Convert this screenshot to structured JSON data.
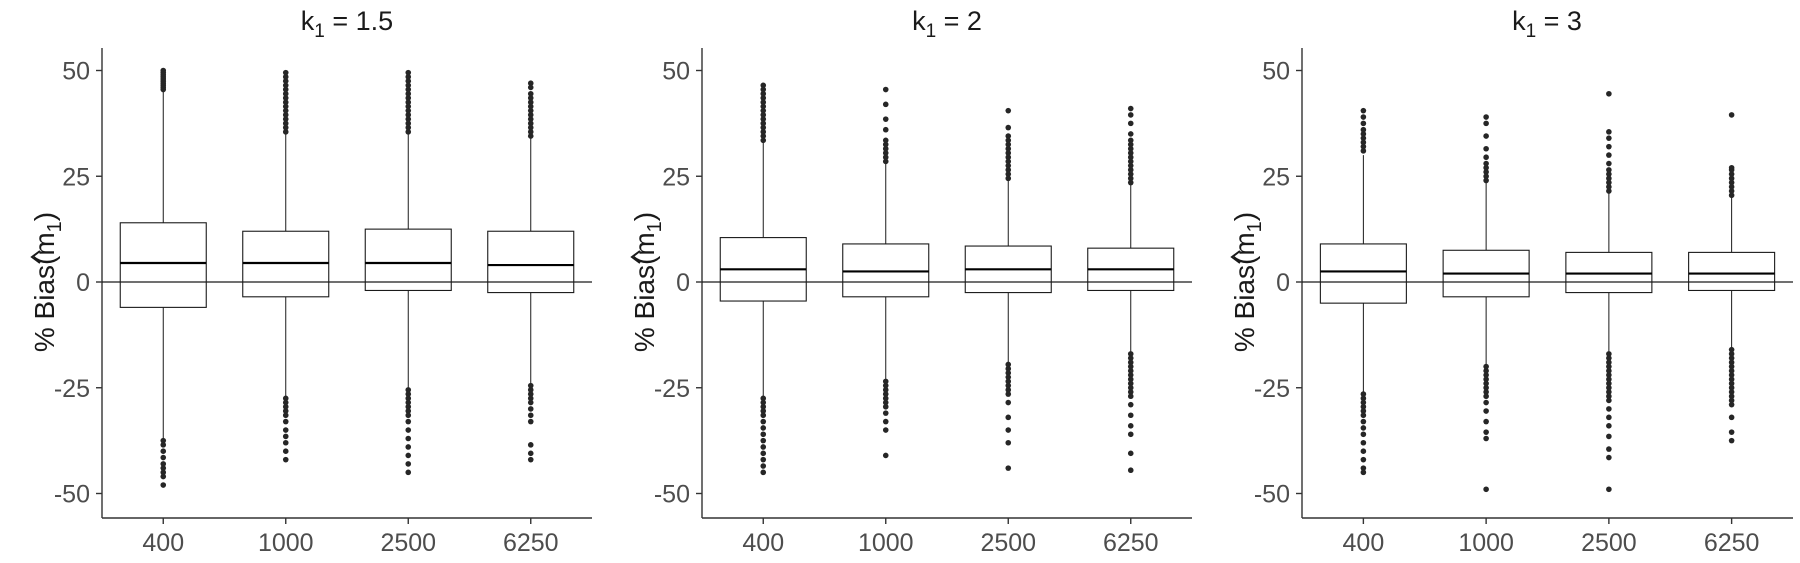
{
  "chart_data": [
    {
      "type": "boxplot",
      "title": {
        "base": "k",
        "sub": "1",
        "rest": " = 1.5"
      },
      "ylabel": {
        "pre": "% Bias(",
        "hat_char": "m",
        "sub": "1",
        "post": ")"
      },
      "ylim": [
        -55,
        55
      ],
      "yticks": [
        -50,
        -25,
        0,
        25,
        50
      ],
      "ytick_labels": [
        "-50",
        "-25",
        "0",
        "25",
        "50"
      ],
      "reference_line": 0,
      "grid": false,
      "categories": [
        "400",
        "1000",
        "2500",
        "6250"
      ],
      "boxes": [
        {
          "q1": -6,
          "median": 4.5,
          "q3": 14,
          "whisker_low": -37,
          "whisker_high": 45,
          "outliers_high": [
            45.5,
            46,
            46.5,
            47,
            47.5,
            48,
            48.5,
            49,
            49.5,
            50
          ],
          "outliers_low": [
            -37.5,
            -38.5,
            -40,
            -41.5,
            -43,
            -44,
            -45,
            -46,
            -48
          ]
        },
        {
          "q1": -3.5,
          "median": 4.5,
          "q3": 12,
          "whisker_low": -27,
          "whisker_high": 35,
          "outliers_high": [
            35.5,
            36.5,
            37.5,
            38.5,
            39.5,
            40.5,
            41.5,
            42.5,
            43.5,
            44.5,
            45.5,
            46.5,
            47.5,
            48.5,
            49.5
          ],
          "outliers_low": [
            -27.5,
            -28.5,
            -29.5,
            -30.5,
            -31.5,
            -33,
            -35,
            -36.5,
            -38,
            -40,
            -42
          ]
        },
        {
          "q1": -2,
          "median": 4.5,
          "q3": 12.5,
          "whisker_low": -25,
          "whisker_high": 35,
          "outliers_high": [
            35.5,
            36.5,
            37.5,
            38.5,
            39.5,
            40.5,
            41.5,
            42.5,
            43.5,
            44.5,
            45.5,
            46.5,
            47.5,
            48.5,
            49.5
          ],
          "outliers_low": [
            -25.5,
            -26.5,
            -27.5,
            -28.5,
            -29.5,
            -30.5,
            -31.5,
            -33,
            -35,
            -37,
            -39,
            -41,
            -43,
            -45
          ]
        },
        {
          "q1": -2.5,
          "median": 4,
          "q3": 12,
          "whisker_low": -24,
          "whisker_high": 34,
          "outliers_high": [
            34.5,
            35.5,
            36.5,
            37.5,
            38.5,
            39.5,
            40.5,
            41.5,
            42.5,
            43.5,
            44.5,
            46,
            47
          ],
          "outliers_low": [
            -24.5,
            -25.5,
            -26.5,
            -27.5,
            -28.5,
            -30,
            -31.5,
            -33,
            -38.5,
            -40.5,
            -42
          ]
        }
      ]
    },
    {
      "type": "boxplot",
      "title": {
        "base": "k",
        "sub": "1",
        "rest": " = 2"
      },
      "ylabel": {
        "pre": "% Bias(",
        "hat_char": "m",
        "sub": "1",
        "post": ")"
      },
      "ylim": [
        -55,
        55
      ],
      "yticks": [
        -50,
        -25,
        0,
        25,
        50
      ],
      "ytick_labels": [
        "-50",
        "-25",
        "0",
        "25",
        "50"
      ],
      "reference_line": 0,
      "grid": false,
      "categories": [
        "400",
        "1000",
        "2500",
        "6250"
      ],
      "boxes": [
        {
          "q1": -4.5,
          "median": 3,
          "q3": 10.5,
          "whisker_low": -27,
          "whisker_high": 33,
          "outliers_high": [
            33.5,
            34.5,
            35.5,
            36.5,
            37.5,
            38.5,
            39.5,
            40.5,
            41.5,
            42.5,
            43.5,
            44.5,
            45.5,
            46.5
          ],
          "outliers_low": [
            -27.5,
            -28.5,
            -29.5,
            -30.5,
            -31.5,
            -33,
            -34.5,
            -36,
            -37.5,
            -39,
            -40.5,
            -42,
            -43.5,
            -45
          ]
        },
        {
          "q1": -3.5,
          "median": 2.5,
          "q3": 9,
          "whisker_low": -23,
          "whisker_high": 28,
          "outliers_high": [
            28.5,
            29.5,
            30.5,
            31.5,
            32.5,
            33.5,
            36,
            38.5,
            42,
            45.5
          ],
          "outliers_low": [
            -23.5,
            -24.5,
            -25.5,
            -26.5,
            -27.5,
            -28.5,
            -29.5,
            -31,
            -33,
            -35,
            -41
          ]
        },
        {
          "q1": -2.5,
          "median": 3,
          "q3": 8.5,
          "whisker_low": -19,
          "whisker_high": 24,
          "outliers_high": [
            24.5,
            25.5,
            26.5,
            27.5,
            28.5,
            29.5,
            30.5,
            31.5,
            32.5,
            33.5,
            34.5,
            36.5,
            40.5
          ],
          "outliers_low": [
            -19.5,
            -20.5,
            -21.5,
            -22.5,
            -23.5,
            -24.5,
            -25.5,
            -26.5,
            -28.5,
            -32,
            -35,
            -38,
            -44
          ]
        },
        {
          "q1": -2,
          "median": 3,
          "q3": 8,
          "whisker_low": -16.5,
          "whisker_high": 23,
          "outliers_high": [
            23.5,
            24.5,
            25.5,
            26.5,
            27.5,
            28.5,
            29.5,
            30.5,
            31.5,
            32.5,
            33.5,
            35,
            37.5,
            39.5,
            41
          ],
          "outliers_low": [
            -17,
            -18,
            -19,
            -20,
            -21,
            -22,
            -23,
            -24,
            -25,
            -26,
            -27,
            -29,
            -31.5,
            -34,
            -36,
            -40.5,
            -44.5
          ]
        }
      ]
    },
    {
      "type": "boxplot",
      "title": {
        "base": "k",
        "sub": "1",
        "rest": " = 3"
      },
      "ylabel": {
        "pre": "% Bias(",
        "hat_char": "m",
        "sub": "1",
        "post": ")"
      },
      "ylim": [
        -55,
        55
      ],
      "yticks": [
        -50,
        -25,
        0,
        25,
        50
      ],
      "ytick_labels": [
        "-50",
        "-25",
        "0",
        "25",
        "50"
      ],
      "reference_line": 0,
      "grid": false,
      "categories": [
        "400",
        "1000",
        "2500",
        "6250"
      ],
      "boxes": [
        {
          "q1": -5,
          "median": 2.5,
          "q3": 9,
          "whisker_low": -26,
          "whisker_high": 30,
          "outliers_high": [
            31,
            32,
            33,
            34,
            35,
            36,
            37.5,
            39,
            40.5
          ],
          "outliers_low": [
            -26.5,
            -27.5,
            -28.5,
            -29.5,
            -30.5,
            -31.5,
            -33,
            -34.5,
            -36,
            -38,
            -40,
            -42,
            -44,
            -45
          ]
        },
        {
          "q1": -3.5,
          "median": 2,
          "q3": 7.5,
          "whisker_low": -19.5,
          "whisker_high": 23.5,
          "outliers_high": [
            24,
            25,
            26,
            27,
            28,
            29.5,
            31.5,
            34.5,
            37.5,
            39
          ],
          "outliers_low": [
            -20,
            -21,
            -22,
            -23,
            -24,
            -25,
            -26,
            -27,
            -28.5,
            -30.5,
            -33,
            -35.5,
            -37,
            -49
          ]
        },
        {
          "q1": -2.5,
          "median": 2,
          "q3": 7,
          "whisker_low": -16.5,
          "whisker_high": 21,
          "outliers_high": [
            21.5,
            22.5,
            23.5,
            24.5,
            25.5,
            26.5,
            28,
            30,
            32,
            34,
            35.5,
            44.5
          ],
          "outliers_low": [
            -17,
            -18,
            -19,
            -20,
            -21,
            -22,
            -23,
            -24,
            -25,
            -26,
            -27,
            -28,
            -30,
            -32,
            -34,
            -36.5,
            -39.5,
            -41.5,
            -49
          ]
        },
        {
          "q1": -2,
          "median": 2,
          "q3": 7,
          "whisker_low": -15.5,
          "whisker_high": 20,
          "outliers_high": [
            20.5,
            21.5,
            22.5,
            23.5,
            24.5,
            25.5,
            26.5,
            27,
            39.5
          ],
          "outliers_low": [
            -16,
            -17,
            -18,
            -19,
            -20,
            -21,
            -22,
            -23,
            -24,
            -25,
            -26,
            -27,
            -28,
            -29,
            -32,
            -35.5,
            -37.5
          ]
        }
      ]
    }
  ]
}
